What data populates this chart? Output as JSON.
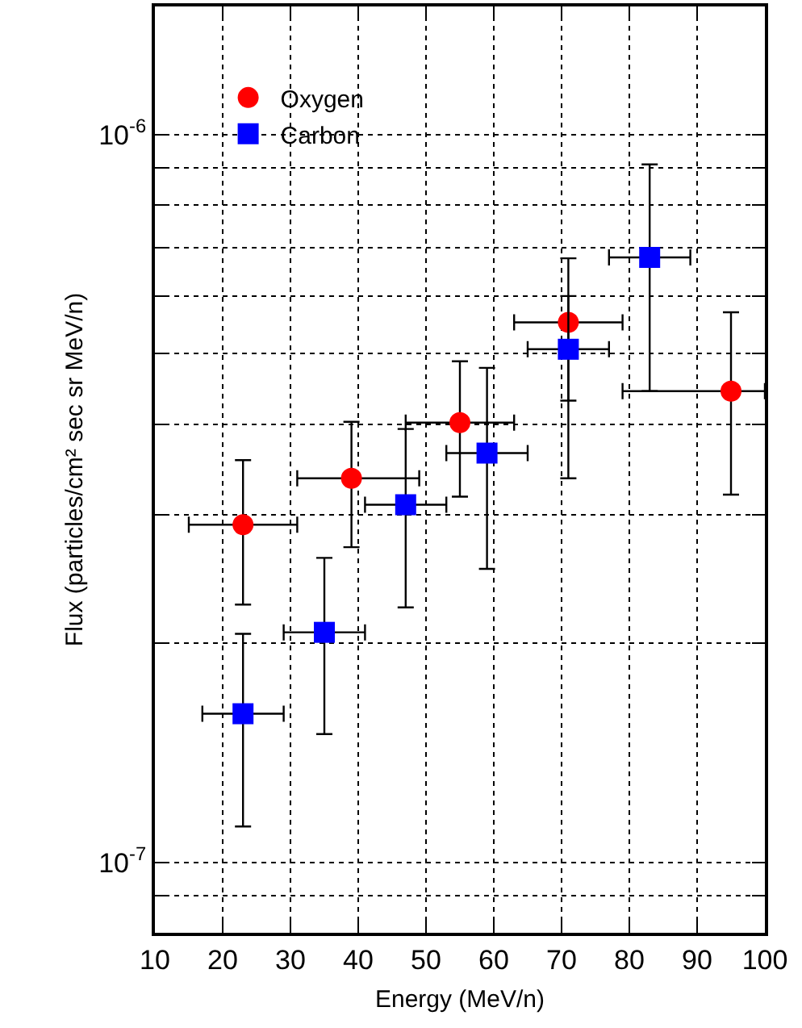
{
  "chart_data": {
    "type": "scatter",
    "xlabel": "Energy (MeV/n)",
    "ylabel": "Flux (particles/cm² sec sr MeV/n)",
    "xlim": [
      10,
      100
    ],
    "xticks": [
      10,
      20,
      30,
      40,
      50,
      60,
      70,
      80,
      90,
      100
    ],
    "ylim": [
      8e-08,
      1.5e-06
    ],
    "log": "y",
    "yticks": [
      {
        "value": 8e-08,
        "label": null
      },
      {
        "value": 9e-08,
        "label": null
      },
      {
        "value": 1e-07,
        "label": "10$^{-7}$"
      },
      {
        "value": 2e-07,
        "label": null
      },
      {
        "value": 3e-07,
        "label": null
      },
      {
        "value": 4e-07,
        "label": null
      },
      {
        "value": 5e-07,
        "label": null
      },
      {
        "value": 6e-07,
        "label": null
      },
      {
        "value": 7e-07,
        "label": null
      },
      {
        "value": 8e-07,
        "label": null
      },
      {
        "value": 9e-07,
        "label": null
      },
      {
        "value": 1e-06,
        "label": "10$^{-6}$"
      }
    ],
    "grid": true,
    "legend": "top left",
    "series": [
      {
        "name": "Oxygen",
        "color": "#ff0000",
        "marker": "circle",
        "x": [
          23,
          39,
          55,
          71,
          95
        ],
        "values": [
          2.91e-07,
          3.37e-07,
          4.02e-07,
          5.52e-07,
          4.44e-07
        ],
        "errors": [
          [
            2.26e-07,
            3.57e-07
          ],
          [
            2.71e-07,
            4.03e-07
          ],
          [
            3.18e-07,
            4.88e-07
          ],
          [
            3.37e-07,
            6.76e-07
          ],
          [
            3.2e-07,
            5.7e-07
          ]
        ],
        "xerrors": [
          [
            15,
            31
          ],
          [
            31,
            49
          ],
          [
            47,
            63
          ],
          [
            63,
            79
          ],
          [
            79,
            100
          ]
        ]
      },
      {
        "name": "Carbon",
        "color": "#0000ff",
        "marker": "square",
        "x": [
          23,
          35,
          47,
          59,
          71,
          83
        ],
        "values": [
          1.6e-07,
          2.07e-07,
          3.1e-07,
          3.65e-07,
          5.07e-07,
          6.78e-07
        ],
        "errors": [
          [
            1.12e-07,
            2.06e-07
          ],
          [
            1.5e-07,
            2.62e-07
          ],
          [
            2.24e-07,
            3.94e-07
          ],
          [
            2.53e-07,
            4.78e-07
          ],
          [
            4.31e-07,
            6e-07
          ],
          [
            4.44e-07,
            9.1e-07
          ]
        ],
        "xerrors": [
          [
            17,
            29
          ],
          [
            29,
            41
          ],
          [
            41,
            53
          ],
          [
            53,
            65
          ],
          [
            65,
            77
          ],
          [
            77,
            89
          ]
        ]
      }
    ]
  }
}
